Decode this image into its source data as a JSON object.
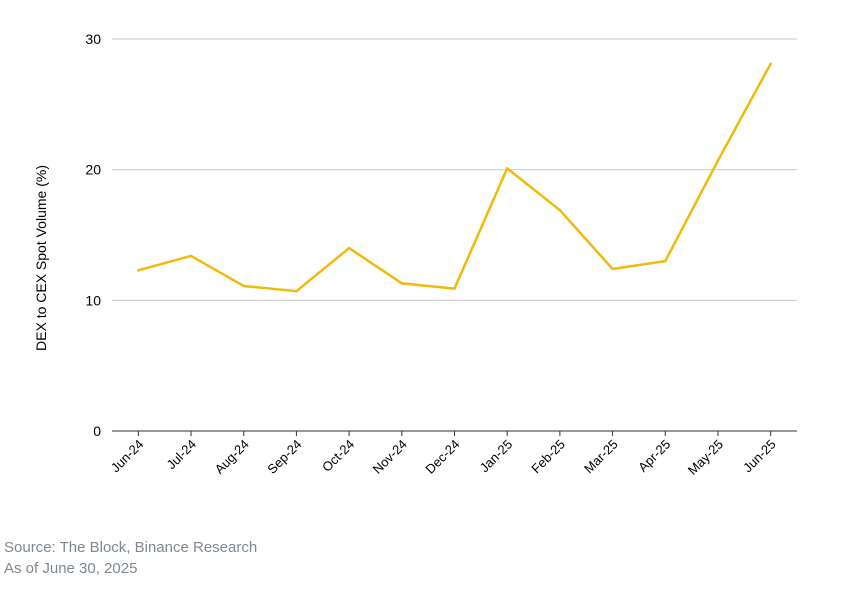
{
  "chart_data": {
    "type": "line",
    "categories": [
      "Jun-24",
      "Jul-24",
      "Aug-24",
      "Sep-24",
      "Oct-24",
      "Nov-24",
      "Dec-24",
      "Jan-25",
      "Feb-25",
      "Mar-25",
      "Apr-25",
      "May-25",
      "Jun-25"
    ],
    "series": [
      {
        "values": [
          12.3,
          13.4,
          11.1,
          10.7,
          14.0,
          11.3,
          10.9,
          20.1,
          16.9,
          12.4,
          13.0,
          20.7,
          28.1
        ],
        "color": "#f0b90b"
      }
    ],
    "ylabel": "DEX to CEX Spot Volume (%)",
    "xlabel": "",
    "ylim": [
      0,
      30
    ],
    "yticks": [
      0,
      10,
      20,
      30
    ],
    "grid": true
  },
  "footer": {
    "source": "Source: The Block, Binance Research",
    "as_of": "As of June 30, 2025"
  }
}
